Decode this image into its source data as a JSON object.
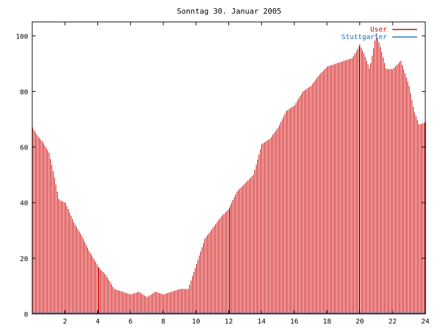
{
  "chart_data": {
    "type": "bar",
    "title": "Sonntag 30. Januar 2005",
    "xlim": [
      0,
      24
    ],
    "ylim": [
      0,
      105
    ],
    "x_ticks": [
      2,
      4,
      6,
      8,
      10,
      12,
      14,
      16,
      18,
      20,
      22,
      24
    ],
    "y_ticks": [
      0,
      20,
      40,
      60,
      80,
      100
    ],
    "grid": false,
    "legend_position": "top-right",
    "colors": {
      "User": "#d00000",
      "Stuttgarter": "#1a6fb5",
      "axis": "#000000"
    },
    "series": [
      {
        "name": "User",
        "keypoints_x": [
          0.0,
          0.3,
          0.6,
          1.0,
          1.3,
          1.6,
          2.0,
          2.5,
          3.0,
          3.4,
          4.0,
          4.5,
          5.0,
          5.5,
          6.0,
          6.5,
          7.0,
          7.5,
          8.0,
          8.5,
          9.0,
          9.5,
          10.0,
          10.5,
          11.0,
          11.5,
          12.0,
          12.5,
          13.0,
          13.5,
          14.0,
          14.5,
          15.0,
          15.5,
          16.0,
          16.5,
          17.0,
          17.5,
          18.0,
          18.5,
          19.0,
          19.5,
          20.0,
          20.3,
          20.6,
          21.0,
          21.3,
          21.6,
          22.0,
          22.5,
          23.0,
          23.3,
          23.6,
          24.0
        ],
        "keypoints_y": [
          67,
          64,
          62,
          58,
          50,
          41,
          40,
          33,
          28,
          23,
          17,
          14,
          9,
          8,
          7,
          8,
          6,
          8,
          7,
          8,
          9,
          9,
          18,
          27,
          31,
          35,
          38,
          44,
          47,
          50,
          61,
          63,
          67,
          73,
          75,
          80,
          82,
          86,
          89,
          90,
          91,
          92,
          97,
          93,
          88,
          101,
          95,
          88,
          88,
          91,
          82,
          73,
          68,
          69
        ]
      },
      {
        "name": "Stuttgarter",
        "keypoints_x": [
          0,
          24
        ],
        "keypoints_y": [
          0,
          0
        ]
      }
    ]
  }
}
